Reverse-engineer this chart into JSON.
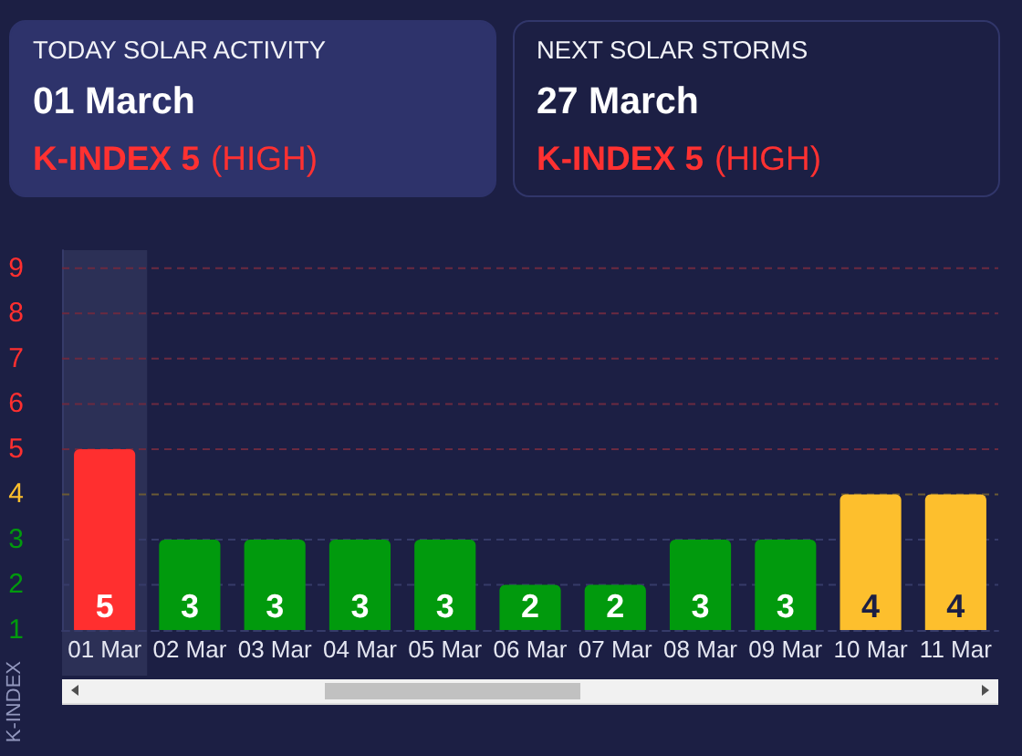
{
  "chart_data": [
    {
      "type": "other",
      "title": "TODAY SOLAR ACTIVITY",
      "subtitle": "01 March",
      "annotations": [
        "K-INDEX 5",
        "(HIGH)"
      ],
      "color": "#ff3131"
    },
    {
      "type": "other",
      "title": "NEXT SOLAR STORMS",
      "subtitle": "27 March",
      "annotations": [
        "K-INDEX 5",
        "(HIGH)"
      ],
      "color": "#ff3131"
    },
    {
      "type": "bar",
      "categories": [
        "01 Mar",
        "02 Mar",
        "03 Mar",
        "04 Mar",
        "05 Mar",
        "06 Mar",
        "07 Mar",
        "08 Mar",
        "09 Mar",
        "10 Mar",
        "11 Mar"
      ],
      "values": [
        5,
        3,
        3,
        3,
        3,
        2,
        2,
        3,
        3,
        4,
        4
      ],
      "colors": [
        "#ff2f2f",
        "#019a0d",
        "#019a0d",
        "#019a0d",
        "#019a0d",
        "#019a0d",
        "#019a0d",
        "#019a0d",
        "#019a0d",
        "#fdbf2d",
        "#fdbf2d"
      ],
      "ylim": [
        1,
        9.4
      ],
      "yticks": [
        1,
        2,
        3,
        4,
        5,
        6,
        7,
        8,
        9
      ],
      "ylabel": "K-INDEX",
      "data_labels": true,
      "ref_lines": [
        {
          "axis": "y",
          "value": 2,
          "color": "#363b69",
          "line_style": "dashed"
        },
        {
          "axis": "y",
          "value": 3,
          "color": "#363b69",
          "line_style": "dashed"
        },
        {
          "axis": "y",
          "value": 4,
          "color": "#6a5a35",
          "line_style": "dashed"
        },
        {
          "axis": "y",
          "value": 5,
          "color": "#6b2a40",
          "line_style": "dashed"
        },
        {
          "axis": "y",
          "value": 6,
          "color": "#6b2a40",
          "line_style": "dashed"
        },
        {
          "axis": "y",
          "value": 7,
          "color": "#6b2a40",
          "line_style": "dashed"
        },
        {
          "axis": "y",
          "value": 8,
          "color": "#6b2a40",
          "line_style": "dashed"
        },
        {
          "axis": "y",
          "value": 9,
          "color": "#6b2a40",
          "line_style": "dashed"
        }
      ],
      "bands": [
        {
          "axis": "x",
          "from": "01 Mar",
          "to": "01 Mar",
          "color": "#2c3056"
        }
      ]
    }
  ]
}
